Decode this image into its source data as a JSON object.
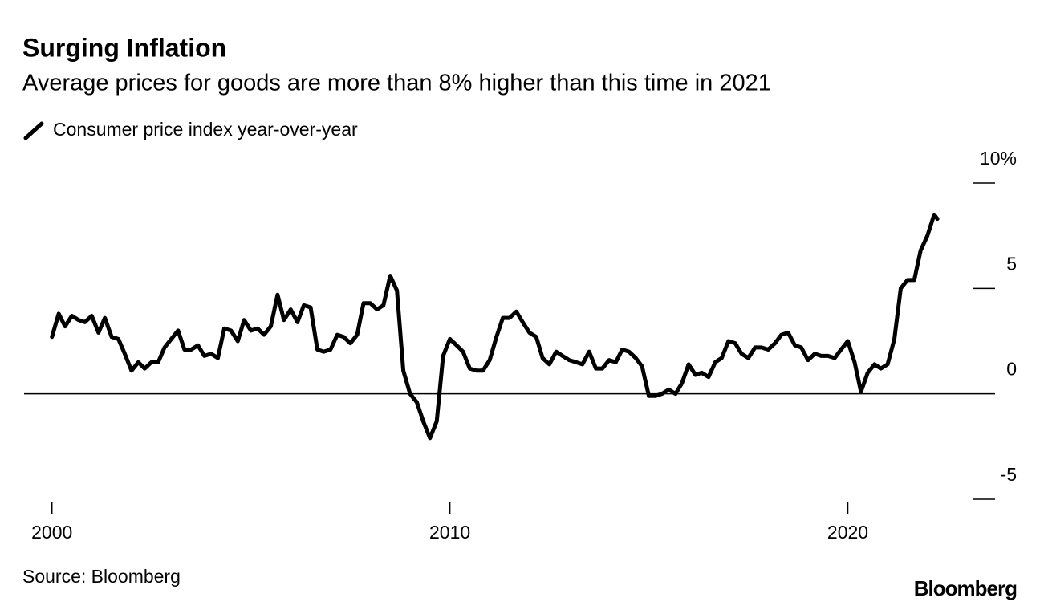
{
  "chart_data": {
    "type": "line",
    "title": "Surging Inflation",
    "subtitle": "Average prices for goods are more than 8% higher than this time in 2021",
    "source": "Source: Bloomberg",
    "brand": "Bloomberg",
    "x": [
      2000,
      2000.17,
      2000.33,
      2000.5,
      2000.67,
      2000.83,
      2001,
      2001.17,
      2001.33,
      2001.5,
      2001.67,
      2001.83,
      2002,
      2002.17,
      2002.33,
      2002.5,
      2002.67,
      2002.83,
      2003,
      2003.17,
      2003.33,
      2003.5,
      2003.67,
      2003.83,
      2004,
      2004.17,
      2004.33,
      2004.5,
      2004.67,
      2004.83,
      2005,
      2005.17,
      2005.33,
      2005.5,
      2005.67,
      2005.83,
      2006,
      2006.17,
      2006.33,
      2006.5,
      2006.67,
      2006.83,
      2007,
      2007.17,
      2007.33,
      2007.5,
      2007.67,
      2007.83,
      2008,
      2008.17,
      2008.33,
      2008.5,
      2008.67,
      2008.83,
      2009,
      2009.17,
      2009.33,
      2009.5,
      2009.67,
      2009.83,
      2010,
      2010.17,
      2010.33,
      2010.5,
      2010.67,
      2010.83,
      2011,
      2011.17,
      2011.33,
      2011.5,
      2011.67,
      2011.83,
      2012,
      2012.17,
      2012.33,
      2012.5,
      2012.67,
      2012.83,
      2013,
      2013.17,
      2013.33,
      2013.5,
      2013.67,
      2013.83,
      2014,
      2014.17,
      2014.33,
      2014.5,
      2014.67,
      2014.83,
      2015,
      2015.17,
      2015.33,
      2015.5,
      2015.67,
      2015.83,
      2016,
      2016.17,
      2016.33,
      2016.5,
      2016.67,
      2016.83,
      2017,
      2017.17,
      2017.33,
      2017.5,
      2017.67,
      2017.83,
      2018,
      2018.17,
      2018.33,
      2018.5,
      2018.67,
      2018.83,
      2019,
      2019.17,
      2019.33,
      2019.5,
      2019.67,
      2019.83,
      2020,
      2020.17,
      2020.33,
      2020.5,
      2020.67,
      2020.83,
      2021,
      2021.17,
      2021.33,
      2021.5,
      2021.67,
      2021.83,
      2022,
      2022.17,
      2022.25
    ],
    "series": [
      {
        "name": "Consumer price index year-over-year",
        "color": "#000000",
        "values": [
          2.7,
          3.8,
          3.2,
          3.7,
          3.5,
          3.4,
          3.7,
          2.9,
          3.6,
          2.7,
          2.6,
          1.9,
          1.1,
          1.5,
          1.2,
          1.5,
          1.5,
          2.2,
          2.6,
          3.0,
          2.1,
          2.1,
          2.3,
          1.8,
          1.9,
          1.7,
          3.1,
          3.0,
          2.5,
          3.5,
          3.0,
          3.1,
          2.8,
          3.2,
          4.7,
          3.5,
          4.0,
          3.4,
          4.2,
          4.1,
          2.1,
          2.0,
          2.1,
          2.8,
          2.7,
          2.4,
          2.8,
          4.3,
          4.3,
          4.0,
          4.2,
          5.6,
          4.9,
          1.1,
          0.0,
          -0.4,
          -1.3,
          -2.1,
          -1.3,
          1.8,
          2.6,
          2.3,
          2.0,
          1.2,
          1.1,
          1.1,
          1.6,
          2.7,
          3.6,
          3.6,
          3.9,
          3.4,
          2.9,
          2.7,
          1.7,
          1.4,
          2.0,
          1.8,
          1.6,
          1.5,
          1.4,
          2.0,
          1.2,
          1.2,
          1.6,
          1.5,
          2.1,
          2.0,
          1.7,
          1.3,
          -0.1,
          -0.1,
          0.0,
          0.2,
          0.0,
          0.5,
          1.4,
          0.9,
          1.0,
          0.8,
          1.5,
          1.7,
          2.5,
          2.4,
          1.9,
          1.7,
          2.2,
          2.2,
          2.1,
          2.4,
          2.8,
          2.9,
          2.3,
          2.2,
          1.6,
          1.9,
          1.8,
          1.8,
          1.7,
          2.1,
          2.5,
          1.5,
          0.1,
          1.0,
          1.4,
          1.2,
          1.4,
          2.6,
          5.0,
          5.4,
          5.4,
          6.8,
          7.5,
          8.5,
          8.3
        ]
      }
    ],
    "xlim": [
      1999.3,
      2023.7
    ],
    "xticks": [
      2000,
      2010,
      2020
    ],
    "ylim": [
      -5,
      10
    ],
    "yticks": [
      -5,
      0,
      5,
      {
        "value": 10,
        "label": "10%"
      }
    ]
  }
}
